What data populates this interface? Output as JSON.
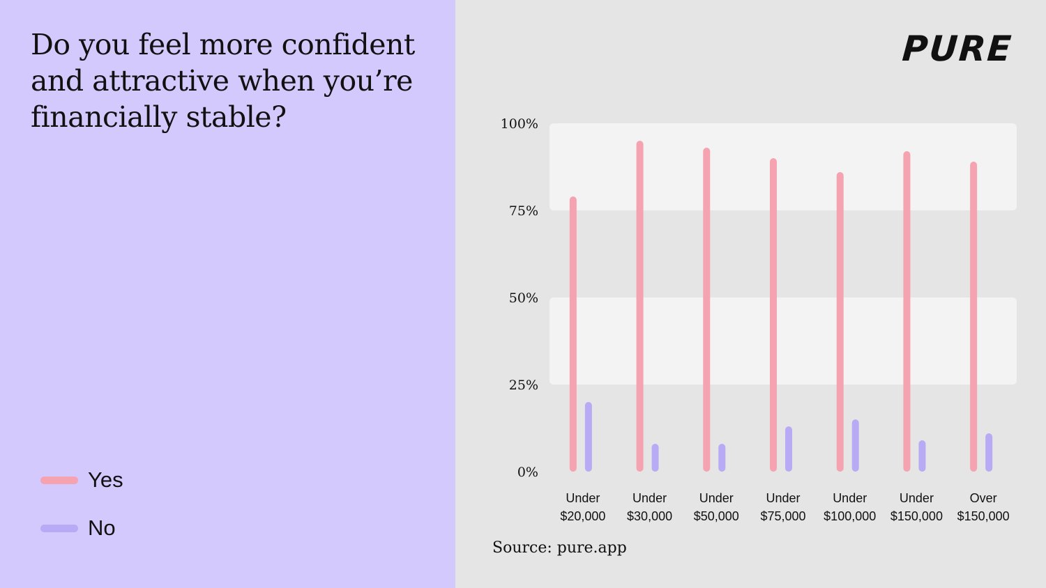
{
  "title": "Do you feel more confident and attractive when you’re financially stable?",
  "logo": "PURE",
  "source": "Source: pure.app",
  "legend": [
    {
      "label": "Yes",
      "color": "#f5a3b0"
    },
    {
      "label": "No",
      "color": "#b9aaf5"
    }
  ],
  "chart_data": {
    "type": "bar",
    "categories": [
      [
        "Under",
        "$20,000"
      ],
      [
        "Under",
        "$30,000"
      ],
      [
        "Under",
        "$50,000"
      ],
      [
        "Under",
        "$75,000"
      ],
      [
        "Under",
        "$100,000"
      ],
      [
        "Under",
        "$150,000"
      ],
      [
        "Over",
        "$150,000"
      ]
    ],
    "series": [
      {
        "name": "Yes",
        "color": "#f5a3b0",
        "values": [
          79,
          95,
          93,
          90,
          86,
          92,
          89
        ]
      },
      {
        "name": "No",
        "color": "#b9aaf5",
        "values": [
          20,
          8,
          8,
          13,
          15,
          9,
          11
        ]
      }
    ],
    "yticks": [
      "0%",
      "25%",
      "50%",
      "75%",
      "100%"
    ],
    "ylim": [
      0,
      100
    ],
    "grid": "alternating bands"
  }
}
